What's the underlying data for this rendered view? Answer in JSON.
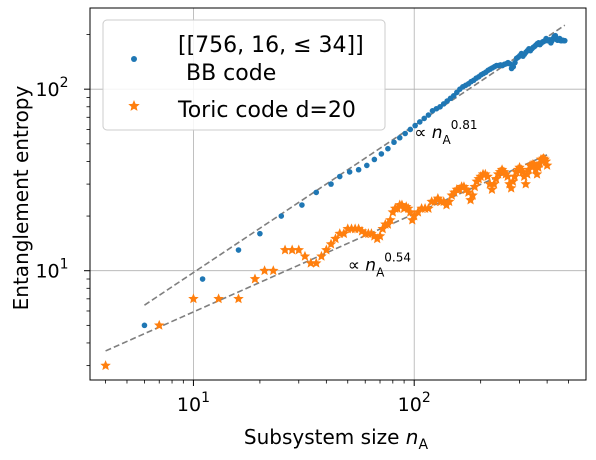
{
  "chart_data": {
    "type": "scatter",
    "xscale": "log",
    "yscale": "log",
    "xlim": [
      3.4,
      600
    ],
    "ylim": [
      2.5,
      280
    ],
    "grid": true,
    "legend_position": "top-left",
    "xlabel_text": "Subsystem size ",
    "xlabel_var": "n",
    "xlabel_sub": "A",
    "ylabel": "Entanglement entropy",
    "x_ticks": [
      {
        "base": "10",
        "exp": "1",
        "value": 10
      },
      {
        "base": "10",
        "exp": "2",
        "value": 100
      }
    ],
    "y_ticks": [
      {
        "base": "10",
        "exp": "1",
        "value": 10
      },
      {
        "base": "10",
        "exp": "2",
        "value": 100
      }
    ],
    "series": [
      {
        "name_line1": "[[756, 16, ≤ 34]]",
        "name_line2": "BB code",
        "color": "#1f77b4",
        "marker": "dot",
        "x": [
          6,
          11,
          16,
          20,
          25,
          31,
          36,
          42,
          46,
          51,
          56,
          61,
          66,
          71,
          76,
          81,
          86,
          91,
          96,
          101,
          106,
          111,
          116,
          121,
          126,
          131,
          136,
          141,
          146,
          151,
          156,
          161,
          166,
          171,
          176,
          181,
          186,
          191,
          196,
          201,
          206,
          211,
          216,
          221,
          226,
          231,
          236,
          241,
          246,
          251,
          256,
          261,
          266,
          271,
          276,
          281,
          286,
          291,
          296,
          301,
          306,
          311,
          316,
          321,
          326,
          331,
          336,
          341,
          346,
          351,
          356,
          361,
          366,
          371,
          376,
          381,
          386,
          391,
          396,
          401,
          406,
          411,
          416,
          421,
          426,
          431,
          436,
          441,
          446,
          451,
          456,
          461,
          466,
          471,
          476,
          481
        ],
        "y": [
          5,
          9,
          13,
          16,
          20,
          23,
          27,
          30,
          33,
          35,
          36,
          38,
          41,
          44,
          47,
          51,
          54,
          57,
          60,
          63,
          66,
          69,
          72,
          76,
          78,
          80,
          83,
          86,
          89,
          92,
          96,
          100,
          103,
          105,
          107,
          110,
          112,
          115,
          117,
          120,
          122,
          124,
          127,
          129,
          131,
          133,
          135,
          135,
          136,
          135,
          137,
          138,
          140,
          138,
          130,
          133,
          140,
          148,
          150,
          153,
          157,
          152,
          156,
          160,
          163,
          167,
          163,
          167,
          170,
          172,
          175,
          178,
          180,
          176,
          179,
          182,
          183,
          185,
          190,
          185,
          186,
          187,
          180,
          185,
          190,
          195,
          197,
          188,
          186,
          188,
          190,
          185,
          185,
          186,
          185,
          185
        ]
      },
      {
        "name": "Toric code d=20",
        "color": "#ff7f0e",
        "marker": "star",
        "x": [
          4,
          7,
          10,
          13,
          16,
          19,
          21,
          23,
          26,
          28,
          30,
          32,
          34,
          36,
          38,
          40,
          42,
          44,
          46,
          48,
          50,
          52,
          54,
          56,
          58,
          60,
          62,
          64,
          66,
          68,
          70,
          72,
          74,
          76,
          78,
          80,
          82,
          84,
          86,
          88,
          90,
          92,
          94,
          96,
          98,
          100,
          104,
          108,
          112,
          116,
          120,
          124,
          128,
          132,
          136,
          140,
          144,
          148,
          152,
          156,
          160,
          164,
          168,
          172,
          176,
          180,
          184,
          188,
          192,
          196,
          200,
          205,
          210,
          215,
          220,
          225,
          230,
          235,
          240,
          245,
          250,
          255,
          260,
          265,
          270,
          275,
          280,
          285,
          290,
          295,
          300,
          305,
          310,
          315,
          320,
          325,
          330,
          335,
          340,
          345,
          350,
          355,
          360,
          365,
          370,
          375,
          380,
          385,
          390,
          395,
          400
        ],
        "y": [
          3,
          5,
          7,
          7,
          7,
          9,
          10,
          10,
          13,
          13,
          13,
          12,
          11,
          11,
          12,
          13,
          14,
          15,
          16,
          16,
          17,
          17,
          17,
          17,
          16.5,
          16,
          16,
          16,
          15.5,
          15,
          15.5,
          17,
          18,
          18,
          19,
          21,
          22,
          22,
          23,
          23,
          22,
          22.5,
          22,
          21,
          19,
          20,
          21,
          22,
          22,
          22,
          24,
          24,
          25,
          24,
          24,
          23,
          24,
          26,
          27,
          28,
          28,
          29,
          29,
          28,
          27,
          24.5,
          26,
          29,
          31,
          32,
          33,
          34,
          34,
          33,
          30,
          28,
          30,
          32,
          34,
          35,
          36,
          35,
          34,
          33,
          30,
          28.5,
          31,
          33,
          35,
          36,
          37,
          36,
          35,
          33,
          30,
          34,
          36,
          38,
          38,
          38.5,
          38,
          36,
          34,
          37,
          39,
          41,
          41,
          41.5,
          41,
          40,
          38
        ]
      }
    ],
    "fits": [
      {
        "label_prefix": "∝ ",
        "var": "n",
        "sub": "A",
        "exp": "0.81",
        "x_range": [
          6,
          481
        ],
        "coef": 1.513,
        "power": 0.81
      },
      {
        "label_prefix": "∝ ",
        "var": "n",
        "sub": "A",
        "exp": "0.54",
        "x_range": [
          4,
          400
        ],
        "coef": 1.71,
        "power": 0.54
      }
    ]
  }
}
